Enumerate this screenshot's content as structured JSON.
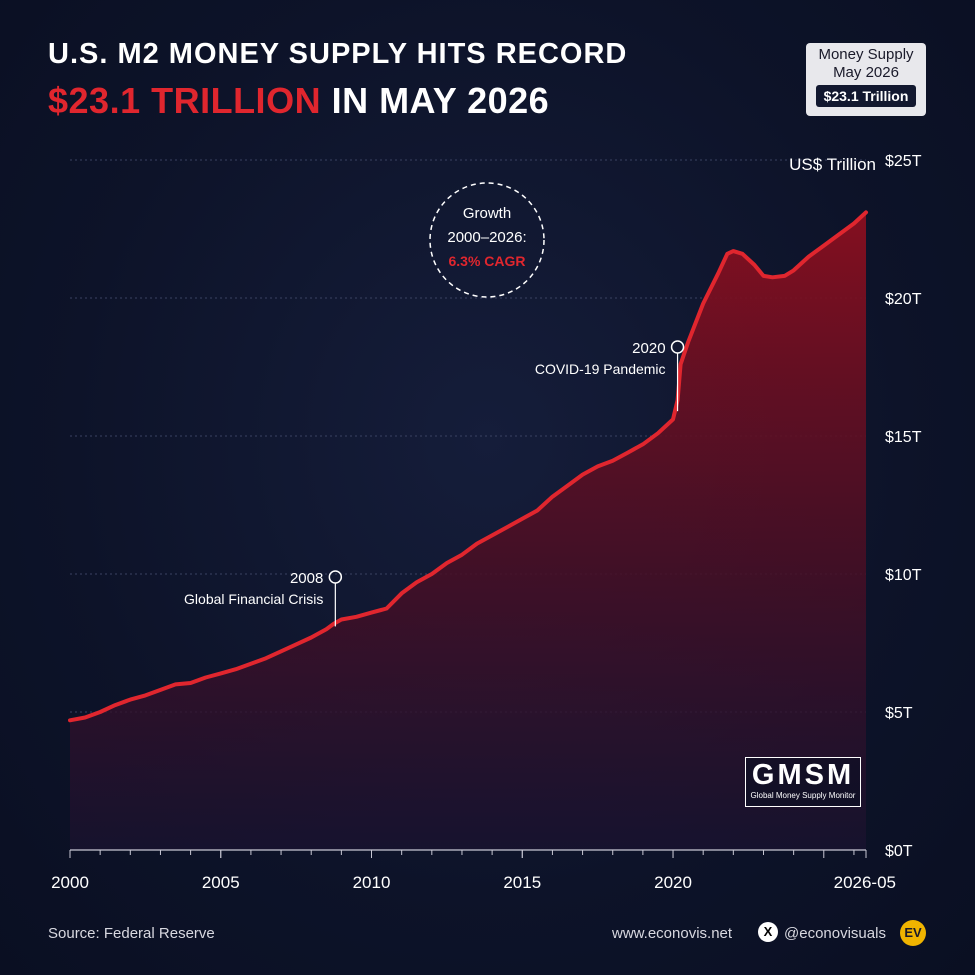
{
  "header": {
    "title_line1": "U.S. M2 MONEY SUPPLY HITS RECORD",
    "title_line2_accent": "$23.1 TRILLION",
    "title_line2_rest": " IN MAY 2026"
  },
  "badge": {
    "line1": "Money Supply",
    "line2": "May 2026",
    "value": "$23.1 Trillion"
  },
  "chart_data": {
    "type": "area",
    "unit_label": "US$ Trillion",
    "xlim": [
      2000,
      2026.4
    ],
    "ylim": [
      0,
      25
    ],
    "x_ticks": [
      {
        "value": 2000,
        "label": "2000"
      },
      {
        "value": 2005,
        "label": "2005"
      },
      {
        "value": 2010,
        "label": "2010"
      },
      {
        "value": 2015,
        "label": "2015"
      },
      {
        "value": 2020,
        "label": "2020"
      },
      {
        "value": 2026.4,
        "label": "2026-05"
      }
    ],
    "y_ticks": [
      {
        "value": 0,
        "label": "$0T"
      },
      {
        "value": 5,
        "label": "$5T"
      },
      {
        "value": 10,
        "label": "$10T"
      },
      {
        "value": 15,
        "label": "$15T"
      },
      {
        "value": 20,
        "label": "$20T"
      },
      {
        "value": 25,
        "label": "$25T"
      }
    ],
    "grid": true,
    "line_color": "#e0262e",
    "x": [
      2000,
      2000.5,
      2001,
      2001.5,
      2002,
      2002.5,
      2003,
      2003.5,
      2004,
      2004.5,
      2005,
      2005.5,
      2006,
      2006.5,
      2007,
      2007.5,
      2008,
      2008.5,
      2008.75,
      2009,
      2009.5,
      2010,
      2010.5,
      2011,
      2011.5,
      2012,
      2012.5,
      2013,
      2013.5,
      2014,
      2014.5,
      2015,
      2015.5,
      2016,
      2016.5,
      2017,
      2017.5,
      2018,
      2018.5,
      2019,
      2019.5,
      2020,
      2020.15,
      2020.25,
      2020.5,
      2021,
      2021.5,
      2021.8,
      2022,
      2022.3,
      2022.7,
      2023,
      2023.3,
      2023.7,
      2024,
      2024.5,
      2025,
      2025.5,
      2026,
      2026.4
    ],
    "values": [
      4.7,
      4.8,
      5.0,
      5.25,
      5.45,
      5.6,
      5.8,
      6.0,
      6.05,
      6.25,
      6.4,
      6.55,
      6.75,
      6.95,
      7.2,
      7.45,
      7.7,
      8.0,
      8.2,
      8.35,
      8.45,
      8.6,
      8.75,
      9.3,
      9.7,
      10.0,
      10.4,
      10.7,
      11.1,
      11.4,
      11.7,
      12.0,
      12.3,
      12.8,
      13.2,
      13.6,
      13.9,
      14.1,
      14.4,
      14.7,
      15.1,
      15.6,
      16.3,
      17.6,
      18.4,
      19.8,
      20.9,
      21.6,
      21.7,
      21.6,
      21.2,
      20.8,
      20.75,
      20.8,
      21.0,
      21.5,
      21.9,
      22.3,
      22.7,
      23.1
    ],
    "annotations": [
      {
        "x": 2008.8,
        "y": 8.1,
        "year": "2008",
        "label": "Global Financial Crisis"
      },
      {
        "x": 2020.15,
        "y": 15.9,
        "year": "2020",
        "label": "COVID-19 Pandemic"
      }
    ],
    "growth_callout": {
      "line1": "Growth",
      "line2": "2000–2026:",
      "value": "6.3% CAGR"
    }
  },
  "footer": {
    "source": "Source: Federal Reserve",
    "website": "www.econovis.net",
    "x_icon": "X",
    "handle": "@econovisuals",
    "logo": "EV"
  },
  "watermark": {
    "big": "GMSM",
    "small": "Global Money Supply Monitor"
  }
}
